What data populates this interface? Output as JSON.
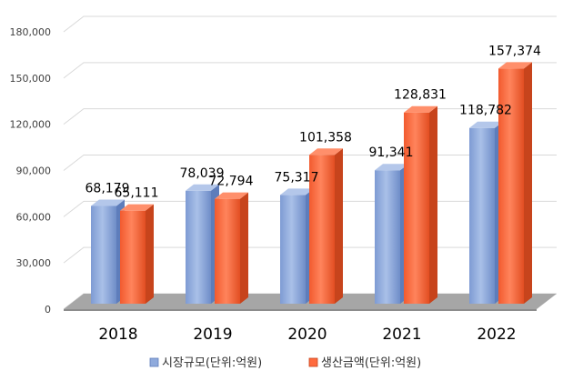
{
  "chart_data": {
    "type": "bar",
    "categories": [
      "2018",
      "2019",
      "2020",
      "2021",
      "2022"
    ],
    "series": [
      {
        "name": "시장규모(단위:억원)",
        "values": [
          68179,
          78039,
          75317,
          91341,
          118782
        ],
        "labels": [
          "68,179",
          "78,039",
          "75,317",
          "91,341",
          "118,782"
        ],
        "color": "#8FAADC"
      },
      {
        "name": "생산금액(단위:억원)",
        "values": [
          65111,
          72794,
          101358,
          128831,
          157374
        ],
        "labels": [
          "65,111",
          "72,794",
          "101,358",
          "128,831",
          "157,374"
        ],
        "color": "#FF6A3D"
      }
    ],
    "ylim": [
      0,
      180000
    ],
    "yticks": [
      0,
      30000,
      60000,
      90000,
      120000,
      150000,
      180000
    ],
    "ytick_labels": [
      "0",
      "30,000",
      "60,000",
      "90,000",
      "120,000",
      "150,000",
      "180,000"
    ],
    "grid": true,
    "legend_position": "bottom",
    "title": "",
    "xlabel": "",
    "ylabel": ""
  }
}
